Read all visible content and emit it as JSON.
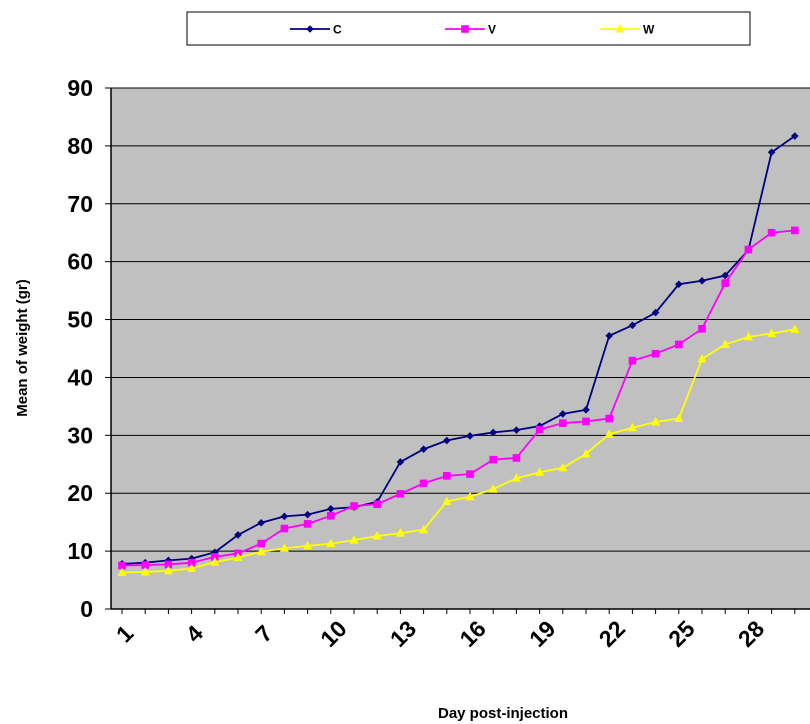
{
  "chart_data": {
    "type": "line",
    "title": "",
    "xlabel": "Day post-injection",
    "ylabel": "Mean of weight (gr)",
    "ylim": [
      0,
      90
    ],
    "yticks": [
      0,
      10,
      20,
      30,
      40,
      50,
      60,
      70,
      80,
      90
    ],
    "x": [
      1,
      2,
      3,
      4,
      5,
      6,
      7,
      8,
      9,
      10,
      11,
      12,
      13,
      14,
      15,
      16,
      17,
      18,
      19,
      20,
      21,
      22,
      23,
      24,
      25,
      26,
      27,
      28,
      29,
      30
    ],
    "xtick_labels": [
      "1",
      "4",
      "7",
      "10",
      "13",
      "16",
      "19",
      "22",
      "25",
      "28"
    ],
    "xtick_values": [
      1,
      4,
      7,
      10,
      13,
      16,
      19,
      22,
      25,
      28
    ],
    "grid": "horizontal",
    "plot_background": "#c0c0c0",
    "legend_position": "top",
    "series": [
      {
        "name": "C",
        "color": "#000080",
        "marker": "diamond",
        "values": [
          7.8,
          8.0,
          8.4,
          8.7,
          9.8,
          12.8,
          14.9,
          16.0,
          16.3,
          17.3,
          17.6,
          18.5,
          25.4,
          27.6,
          29.1,
          29.9,
          30.5,
          30.9,
          31.6,
          33.7,
          34.4,
          47.2,
          49.0,
          51.2,
          56.1,
          56.7,
          57.6,
          62.0,
          78.9,
          81.7
        ]
      },
      {
        "name": "V",
        "color": "#ff00ff",
        "marker": "square",
        "values": [
          7.5,
          7.6,
          7.7,
          8.0,
          9.0,
          9.6,
          11.3,
          13.9,
          14.7,
          16.1,
          17.8,
          18.1,
          19.9,
          21.7,
          23.0,
          23.3,
          25.8,
          26.1,
          31.0,
          32.1,
          32.4,
          32.9,
          42.9,
          44.1,
          45.7,
          48.4,
          56.3,
          62.1,
          65.0,
          65.4
        ]
      },
      {
        "name": "W",
        "color": "#ffff00",
        "marker": "triangle",
        "values": [
          6.3,
          6.4,
          6.6,
          7.0,
          8.1,
          8.9,
          9.9,
          10.5,
          10.9,
          11.3,
          11.9,
          12.6,
          13.1,
          13.7,
          18.6,
          19.4,
          20.7,
          22.6,
          23.6,
          24.4,
          26.8,
          30.2,
          31.3,
          32.3,
          32.9,
          43.2,
          45.7,
          47.0,
          47.6,
          48.3
        ]
      }
    ]
  }
}
